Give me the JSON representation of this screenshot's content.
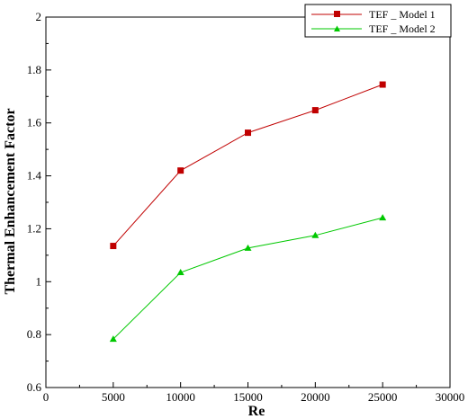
{
  "chart_data": {
    "type": "line",
    "title": "",
    "xlabel": "Re",
    "ylabel": "Thermal Enhancement Factor",
    "xlim": [
      0,
      30000
    ],
    "ylim": [
      0.6,
      2.0
    ],
    "x_ticks": [
      "0",
      "5000",
      "10000",
      "15000",
      "20000",
      "25000",
      "30000"
    ],
    "y_ticks": [
      "0.6",
      "0.8",
      "1",
      "1.2",
      "1.4",
      "1.6",
      "1.8",
      "2"
    ],
    "grid": false,
    "legend_position": "top-right",
    "series": [
      {
        "name": "TEF _ Model 1",
        "color": "#c00000",
        "marker": "square",
        "x": [
          5000,
          10000,
          15000,
          20000,
          25000
        ],
        "y": [
          1.135,
          1.42,
          1.563,
          1.648,
          1.745
        ]
      },
      {
        "name": "TEF _ Model 2",
        "color": "#00c800",
        "marker": "triangle",
        "x": [
          5000,
          10000,
          15000,
          20000,
          25000
        ],
        "y": [
          0.783,
          1.035,
          1.127,
          1.175,
          1.242
        ]
      }
    ]
  }
}
